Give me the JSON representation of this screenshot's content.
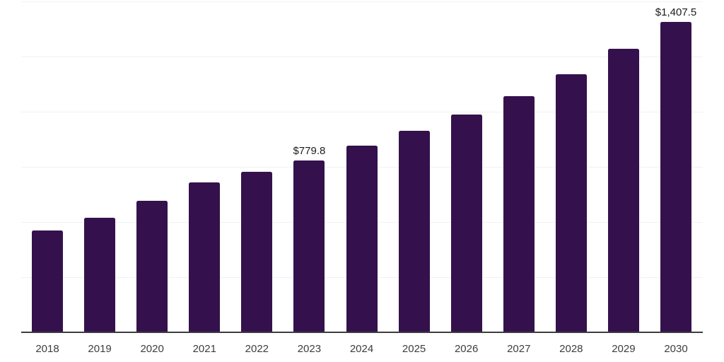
{
  "chart_data": {
    "type": "bar",
    "categories": [
      "2018",
      "2019",
      "2020",
      "2021",
      "2022",
      "2023",
      "2024",
      "2025",
      "2026",
      "2027",
      "2028",
      "2029",
      "2030"
    ],
    "values": [
      463,
      518,
      596,
      678,
      726,
      779.8,
      845,
      912,
      987,
      1070,
      1171,
      1284,
      1407.5
    ],
    "data_labels": [
      {
        "category": "2023",
        "text": "$779.8"
      },
      {
        "category": "2030",
        "text": "$1,407.5"
      }
    ],
    "ylim": [
      0,
      1500
    ],
    "gridline_interval": 250,
    "grid": "horizontal",
    "legend_position": "none",
    "colors": {
      "bar": "#34114c",
      "gridline": "#f1f1f3",
      "axis_line": "#3d3d3d",
      "tick_label": "#3d3d3d",
      "value_label": "#1c1c1c",
      "background": "#ffffff"
    }
  }
}
